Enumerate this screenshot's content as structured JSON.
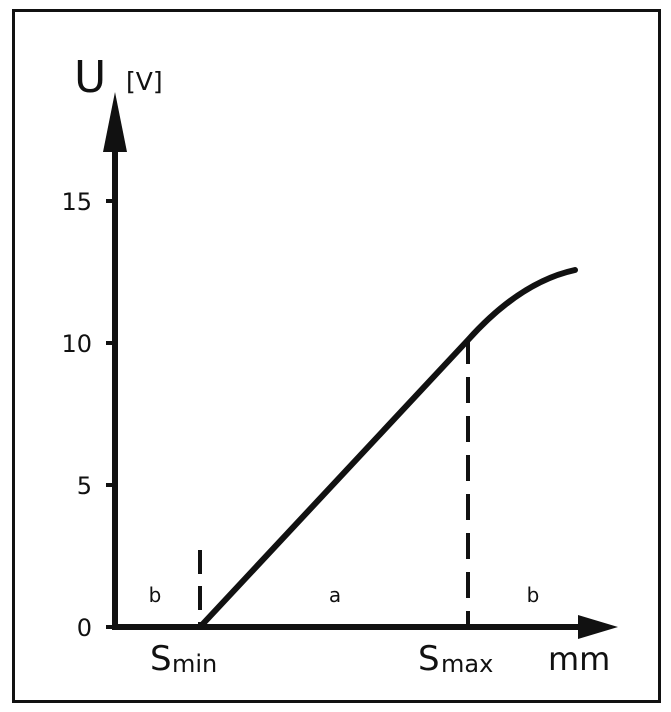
{
  "chart_data": {
    "type": "line",
    "title": "",
    "ylabel": "U",
    "yunit": "[V]",
    "xlabel": "mm",
    "ylim": [
      0,
      15
    ],
    "yticks": [
      "0",
      "5",
      "10",
      "15"
    ],
    "grid": false,
    "x_markers": [
      {
        "main": "S",
        "sub": "min",
        "x": 0
      },
      {
        "main": "S",
        "sub": "max",
        "x": 10
      }
    ],
    "series": [
      {
        "x": [
          0,
          10,
          11,
          12,
          13,
          14
        ],
        "y": [
          0,
          10,
          11.1,
          11.8,
          12.2,
          12.4
        ]
      }
    ],
    "regions": [
      {
        "label": "b",
        "x": -1.6
      },
      {
        "label": "a",
        "x": 5
      },
      {
        "label": "b",
        "x": 12.5
      }
    ],
    "colors": {
      "line": "#111111",
      "axis": "#111111",
      "background": "#ffffff"
    }
  }
}
